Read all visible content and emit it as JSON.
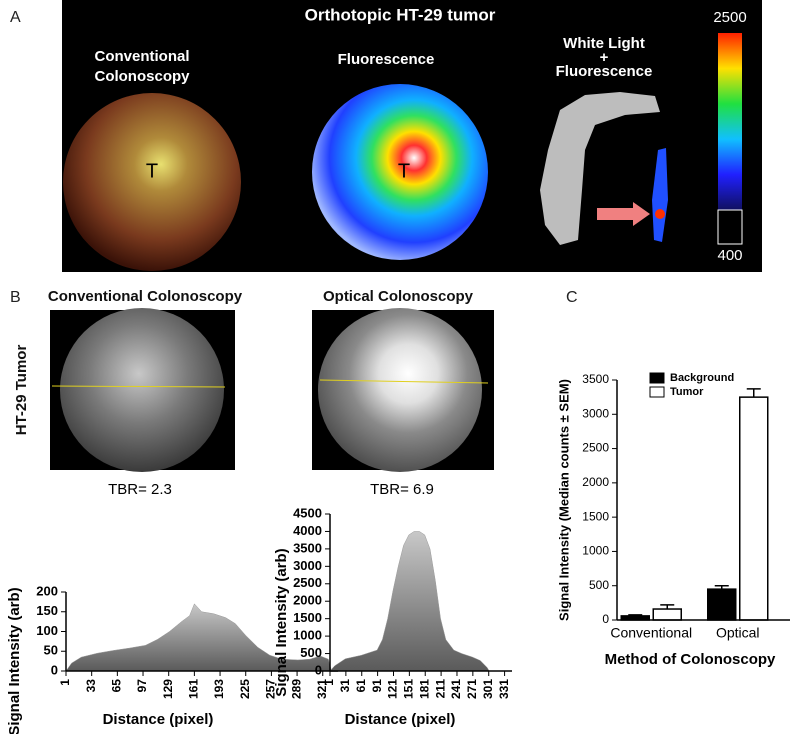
{
  "panel_a": {
    "label": "A",
    "title": "Orthotopic HT-29 tumor",
    "images": [
      {
        "label_lines": [
          "Conventional",
          "Colonoscopy"
        ],
        "marker": "T"
      },
      {
        "label_lines": [
          "Fluorescence"
        ],
        "marker": "T"
      },
      {
        "label_lines": [
          "White Light",
          "+",
          "Fluorescence"
        ]
      }
    ],
    "colorbar": {
      "max_label": "2500",
      "min_label": "400"
    }
  },
  "panel_b": {
    "label": "B",
    "row_label": "HT-29 Tumor",
    "columns": [
      {
        "title": "Conventional Colonoscopy",
        "tbr": "TBR= 2.3"
      },
      {
        "title": "Optical Colonoscopy",
        "tbr": "TBR= 6.9"
      }
    ]
  },
  "panel_c": {
    "label": "C"
  },
  "chart_data": [
    {
      "type": "area",
      "xlabel": "Distance (pixel)",
      "ylabel": "Signal Intensity (arb)",
      "color": "#9a9a9a",
      "x": [
        1,
        8,
        20,
        40,
        60,
        80,
        100,
        115,
        130,
        145,
        155,
        161,
        170,
        185,
        200,
        212,
        225,
        240,
        255,
        270,
        290,
        305,
        318,
        328,
        332
      ],
      "values": [
        0,
        20,
        35,
        45,
        52,
        58,
        65,
        80,
        100,
        125,
        140,
        170,
        150,
        145,
        135,
        120,
        90,
        60,
        40,
        30,
        28,
        30,
        38,
        30,
        0
      ],
      "xlim": [
        1,
        340
      ],
      "xticks": [
        1,
        33,
        65,
        97,
        129,
        161,
        193,
        225,
        257,
        289,
        321
      ],
      "ylim": [
        0,
        200
      ],
      "yticks": [
        0,
        50,
        100,
        150,
        200
      ]
    },
    {
      "type": "area",
      "xlabel": "Distance (pixel)",
      "ylabel": "Signal Intensity (arb)",
      "color": "#9a9a9a",
      "x": [
        1,
        10,
        30,
        60,
        90,
        100,
        110,
        120,
        130,
        140,
        150,
        160,
        170,
        180,
        190,
        200,
        210,
        220,
        235,
        250,
        270,
        285,
        298,
        302
      ],
      "values": [
        0,
        150,
        350,
        450,
        600,
        900,
        1500,
        2300,
        3000,
        3600,
        3900,
        4000,
        4000,
        3900,
        3500,
        2600,
        1500,
        900,
        600,
        500,
        400,
        300,
        100,
        0
      ],
      "xlim": [
        1,
        345
      ],
      "xticks": [
        1,
        31,
        61,
        91,
        121,
        151,
        181,
        211,
        241,
        271,
        301,
        331
      ],
      "ylim": [
        0,
        4500
      ],
      "yticks": [
        0,
        500,
        1000,
        1500,
        2000,
        2500,
        3000,
        3500,
        4000,
        4500
      ]
    },
    {
      "type": "bar",
      "xlabel": "Method of Colonoscopy",
      "ylabel": "Signal Intensity (Median counts ± SEM)",
      "categories": [
        "Conventional",
        "Optical"
      ],
      "series": [
        {
          "name": "Background",
          "color": "#000000",
          "values": [
            60,
            450
          ],
          "errors": [
            15,
            50
          ]
        },
        {
          "name": "Tumor",
          "color": "#ffffff",
          "values": [
            160,
            3250
          ],
          "errors": [
            60,
            120
          ]
        }
      ],
      "ylim": [
        0,
        3500
      ],
      "yticks": [
        0,
        500,
        1000,
        1500,
        2000,
        2500,
        3000,
        3500
      ]
    }
  ]
}
